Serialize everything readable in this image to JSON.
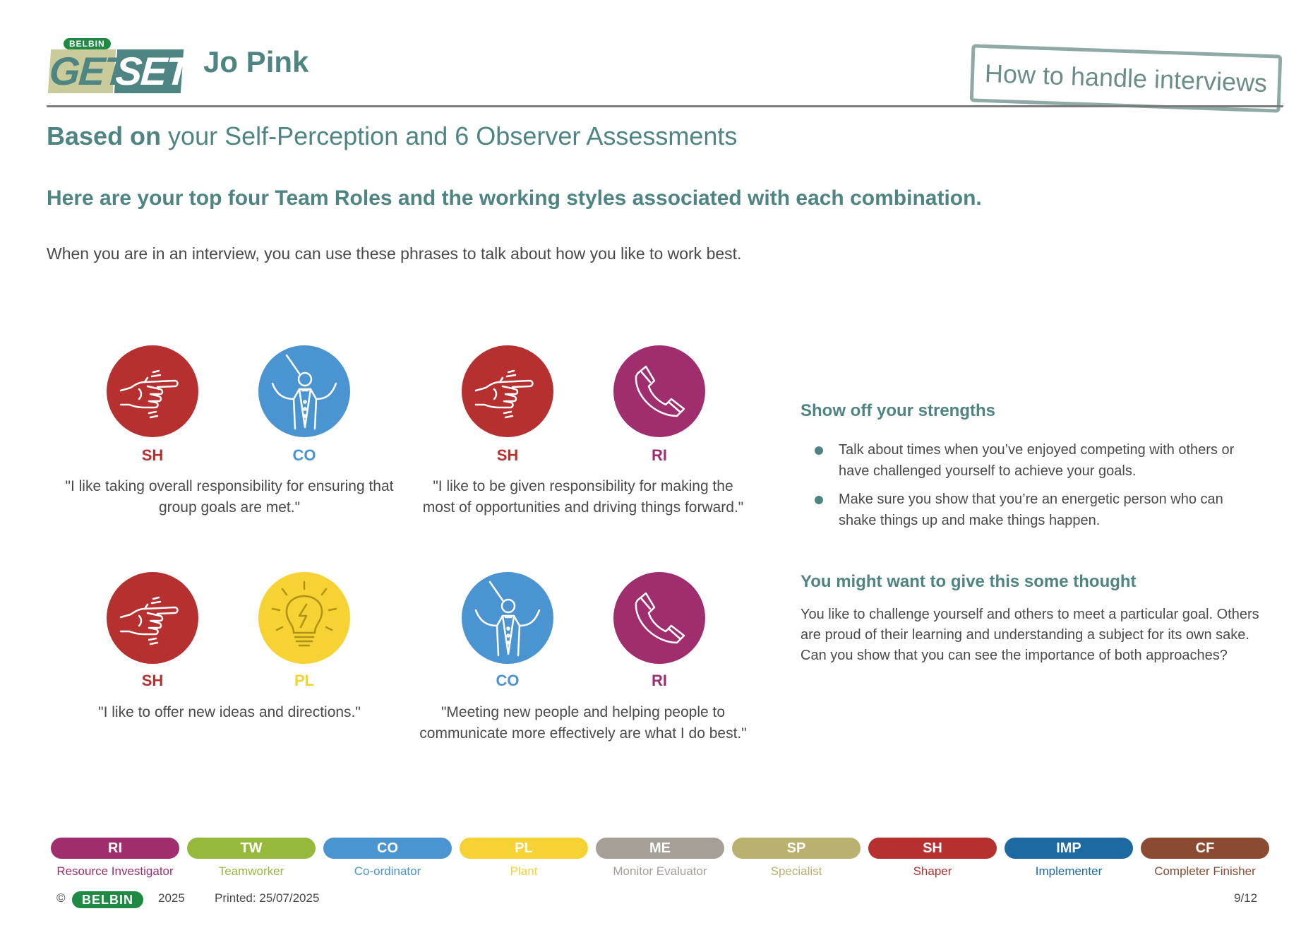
{
  "header": {
    "logo_top": "BELBIN",
    "logo_left": "GET",
    "logo_right": "SET",
    "person_name": "Jo Pink",
    "section_stamp": "How to handle interviews"
  },
  "subtitle": {
    "bold": "Based on",
    "rest": " your Self-Perception and 6 Observer Assessments"
  },
  "heading": "Here are your top four Team Roles and the working styles associated with each combination.",
  "intro": "When you are in an interview, you can use these phrases to talk about how you like to work best.",
  "colors": {
    "SH": "#b5302e",
    "CO": "#4b94d2",
    "RI": "#a02e6e",
    "PL": "#f6d232",
    "TW": "#96b93c",
    "ME": "#a69f97",
    "SP": "#b9b16d",
    "IMP": "#1c6aa1",
    "CF": "#8c4a32",
    "accent": "#4e8582"
  },
  "combinations": [
    {
      "role1": "SH",
      "role2": "CO",
      "icon1": "pointing-hand-icon",
      "icon2": "conductor-icon",
      "quote": "\"I like taking overall responsibility for ensuring that group goals are met.\""
    },
    {
      "role1": "SH",
      "role2": "RI",
      "icon1": "pointing-hand-icon",
      "icon2": "telephone-icon",
      "quote": "\"I like to be given responsibility for making the most of opportunities and driving things forward.\""
    },
    {
      "role1": "SH",
      "role2": "PL",
      "icon1": "pointing-hand-icon",
      "icon2": "lightbulb-icon",
      "quote": "\"I like to offer new ideas and directions.\""
    },
    {
      "role1": "CO",
      "role2": "RI",
      "icon1": "conductor-icon",
      "icon2": "telephone-icon",
      "quote": "\"Meeting new people and helping people to communicate more effectively are what I do best.\""
    }
  ],
  "strengths": {
    "title": "Show off your strengths",
    "items": [
      "Talk about times when you’ve enjoyed competing with others or have challenged yourself to achieve your goals.",
      "Make sure you show that you’re an energetic person who can shake things up and make things happen."
    ]
  },
  "thought": {
    "title": "You might want to give this some thought",
    "text": "You like to challenge yourself and others to meet a particular goal. Others are proud of their learning and understanding a subject for its own sake. Can you show that you can see the importance of both approaches?"
  },
  "legend": [
    {
      "code": "RI",
      "label": "Resource Investigator",
      "color": "#a02e6e"
    },
    {
      "code": "TW",
      "label": "Teamworker",
      "color": "#96b93c"
    },
    {
      "code": "CO",
      "label": "Co-ordinator",
      "color": "#4b94d2"
    },
    {
      "code": "PL",
      "label": "Plant",
      "color": "#f6d232"
    },
    {
      "code": "ME",
      "label": "Monitor Evaluator",
      "color": "#a69f97"
    },
    {
      "code": "SP",
      "label": "Specialist",
      "color": "#b9b16d"
    },
    {
      "code": "SH",
      "label": "Shaper",
      "color": "#b5302e"
    },
    {
      "code": "IMP",
      "label": "Implementer",
      "color": "#1c6aa1"
    },
    {
      "code": "CF",
      "label": "Completer Finisher",
      "color": "#8c4a32"
    }
  ],
  "footer": {
    "copyright": "©",
    "logo": "BELBIN",
    "year": "2025",
    "printed": "Printed: 25/07/2025",
    "page": "9/12"
  }
}
